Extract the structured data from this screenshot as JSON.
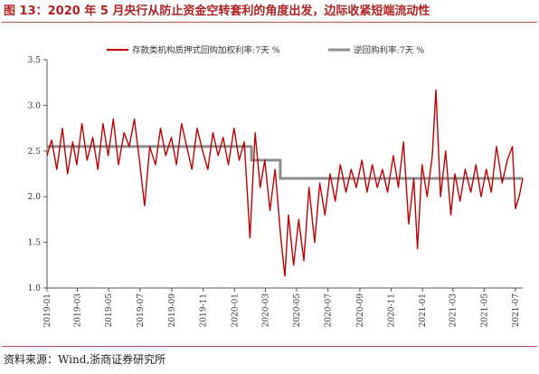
{
  "title": "图 13：2020 年 5 月央行从防止资金空转套利的角度出发，边际收紧短端流动性",
  "source": "资料来源：Wind,浙商证券研究所",
  "chart_data": {
    "type": "line",
    "x_range": [
      "2019-01-01",
      "2021-07-15"
    ],
    "ylim": [
      1.0,
      3.5
    ],
    "y_ticks": [
      "1.0",
      "1.5",
      "2.0",
      "2.5",
      "3.0",
      "3.5"
    ],
    "x_ticks": [
      {
        "date": "2019-01-01",
        "label": "2019-01"
      },
      {
        "date": "2019-03-01",
        "label": "2019-03"
      },
      {
        "date": "2019-05-01",
        "label": "2019-05"
      },
      {
        "date": "2019-07-01",
        "label": "2019-07"
      },
      {
        "date": "2019-09-01",
        "label": "2019-09"
      },
      {
        "date": "2019-11-01",
        "label": "2019-11"
      },
      {
        "date": "2020-01-01",
        "label": "2020-01"
      },
      {
        "date": "2020-03-01",
        "label": "2020-03"
      },
      {
        "date": "2020-05-01",
        "label": "2020-05"
      },
      {
        "date": "2020-07-01",
        "label": "2020-07"
      },
      {
        "date": "2020-09-01",
        "label": "2020-09"
      },
      {
        "date": "2020-11-01",
        "label": "2020-11"
      },
      {
        "date": "2021-01-01",
        "label": "2021-01"
      },
      {
        "date": "2021-03-01",
        "label": "2021-03"
      },
      {
        "date": "2021-05-01",
        "label": "2021-05"
      },
      {
        "date": "2021-07-01",
        "label": "2021-07"
      }
    ],
    "legend_position": "top-right",
    "series": [
      {
        "name": "存款类机构质押式回购加权利率:7天 %",
        "color": "#c00000",
        "points": [
          [
            "2019-01-01",
            2.45
          ],
          [
            "2019-01-10",
            2.62
          ],
          [
            "2019-01-20",
            2.3
          ],
          [
            "2019-01-31",
            2.75
          ],
          [
            "2019-02-10",
            2.25
          ],
          [
            "2019-02-20",
            2.6
          ],
          [
            "2019-02-28",
            2.35
          ],
          [
            "2019-03-10",
            2.8
          ],
          [
            "2019-03-20",
            2.4
          ],
          [
            "2019-03-31",
            2.65
          ],
          [
            "2019-04-10",
            2.3
          ],
          [
            "2019-04-20",
            2.8
          ],
          [
            "2019-04-30",
            2.45
          ],
          [
            "2019-05-10",
            2.85
          ],
          [
            "2019-05-20",
            2.35
          ],
          [
            "2019-05-31",
            2.7
          ],
          [
            "2019-06-10",
            2.55
          ],
          [
            "2019-06-20",
            2.85
          ],
          [
            "2019-06-30",
            2.4
          ],
          [
            "2019-07-10",
            1.9
          ],
          [
            "2019-07-20",
            2.55
          ],
          [
            "2019-07-31",
            2.35
          ],
          [
            "2019-08-10",
            2.75
          ],
          [
            "2019-08-20",
            2.45
          ],
          [
            "2019-08-31",
            2.65
          ],
          [
            "2019-09-10",
            2.35
          ],
          [
            "2019-09-20",
            2.8
          ],
          [
            "2019-09-30",
            2.55
          ],
          [
            "2019-10-10",
            2.3
          ],
          [
            "2019-10-20",
            2.75
          ],
          [
            "2019-10-31",
            2.5
          ],
          [
            "2019-11-10",
            2.3
          ],
          [
            "2019-11-20",
            2.7
          ],
          [
            "2019-11-30",
            2.45
          ],
          [
            "2019-12-10",
            2.65
          ],
          [
            "2019-12-20",
            2.35
          ],
          [
            "2019-12-31",
            2.75
          ],
          [
            "2020-01-10",
            2.4
          ],
          [
            "2020-01-20",
            2.6
          ],
          [
            "2020-01-31",
            1.55
          ],
          [
            "2020-02-10",
            2.7
          ],
          [
            "2020-02-20",
            2.1
          ],
          [
            "2020-02-29",
            2.4
          ],
          [
            "2020-03-10",
            1.85
          ],
          [
            "2020-03-20",
            2.3
          ],
          [
            "2020-03-31",
            1.55
          ],
          [
            "2020-04-08",
            1.13
          ],
          [
            "2020-04-15",
            1.8
          ],
          [
            "2020-04-25",
            1.25
          ],
          [
            "2020-05-05",
            1.75
          ],
          [
            "2020-05-15",
            1.3
          ],
          [
            "2020-05-25",
            2.1
          ],
          [
            "2020-06-05",
            1.5
          ],
          [
            "2020-06-15",
            2.15
          ],
          [
            "2020-06-25",
            1.8
          ],
          [
            "2020-07-05",
            2.25
          ],
          [
            "2020-07-15",
            1.95
          ],
          [
            "2020-07-25",
            2.35
          ],
          [
            "2020-08-05",
            2.05
          ],
          [
            "2020-08-15",
            2.3
          ],
          [
            "2020-08-25",
            2.1
          ],
          [
            "2020-09-05",
            2.4
          ],
          [
            "2020-09-15",
            2.05
          ],
          [
            "2020-09-25",
            2.35
          ],
          [
            "2020-10-05",
            2.1
          ],
          [
            "2020-10-15",
            2.3
          ],
          [
            "2020-10-25",
            2.05
          ],
          [
            "2020-11-05",
            2.45
          ],
          [
            "2020-11-15",
            2.1
          ],
          [
            "2020-11-25",
            2.6
          ],
          [
            "2020-12-05",
            1.7
          ],
          [
            "2020-12-15",
            2.2
          ],
          [
            "2020-12-22",
            1.43
          ],
          [
            "2020-12-31",
            2.35
          ],
          [
            "2021-01-10",
            2.0
          ],
          [
            "2021-01-20",
            2.45
          ],
          [
            "2021-01-27",
            3.17
          ],
          [
            "2021-02-05",
            2.0
          ],
          [
            "2021-02-15",
            2.5
          ],
          [
            "2021-02-25",
            1.8
          ],
          [
            "2021-03-05",
            2.25
          ],
          [
            "2021-03-15",
            1.95
          ],
          [
            "2021-03-25",
            2.3
          ],
          [
            "2021-04-05",
            2.05
          ],
          [
            "2021-04-15",
            2.35
          ],
          [
            "2021-04-25",
            2.0
          ],
          [
            "2021-05-05",
            2.3
          ],
          [
            "2021-05-15",
            2.05
          ],
          [
            "2021-05-25",
            2.55
          ],
          [
            "2021-06-05",
            2.15
          ],
          [
            "2021-06-15",
            2.4
          ],
          [
            "2021-06-25",
            2.55
          ],
          [
            "2021-07-01",
            1.87
          ],
          [
            "2021-07-08",
            2.0
          ],
          [
            "2021-07-15",
            2.2
          ]
        ]
      },
      {
        "name": "逆回购利率:7天 %",
        "color": "#8c8c8c",
        "points": [
          [
            "2019-01-01",
            2.55
          ],
          [
            "2020-02-03",
            2.55
          ],
          [
            "2020-02-03",
            2.4
          ],
          [
            "2020-03-30",
            2.4
          ],
          [
            "2020-03-30",
            2.2
          ],
          [
            "2021-07-15",
            2.2
          ]
        ]
      }
    ]
  }
}
